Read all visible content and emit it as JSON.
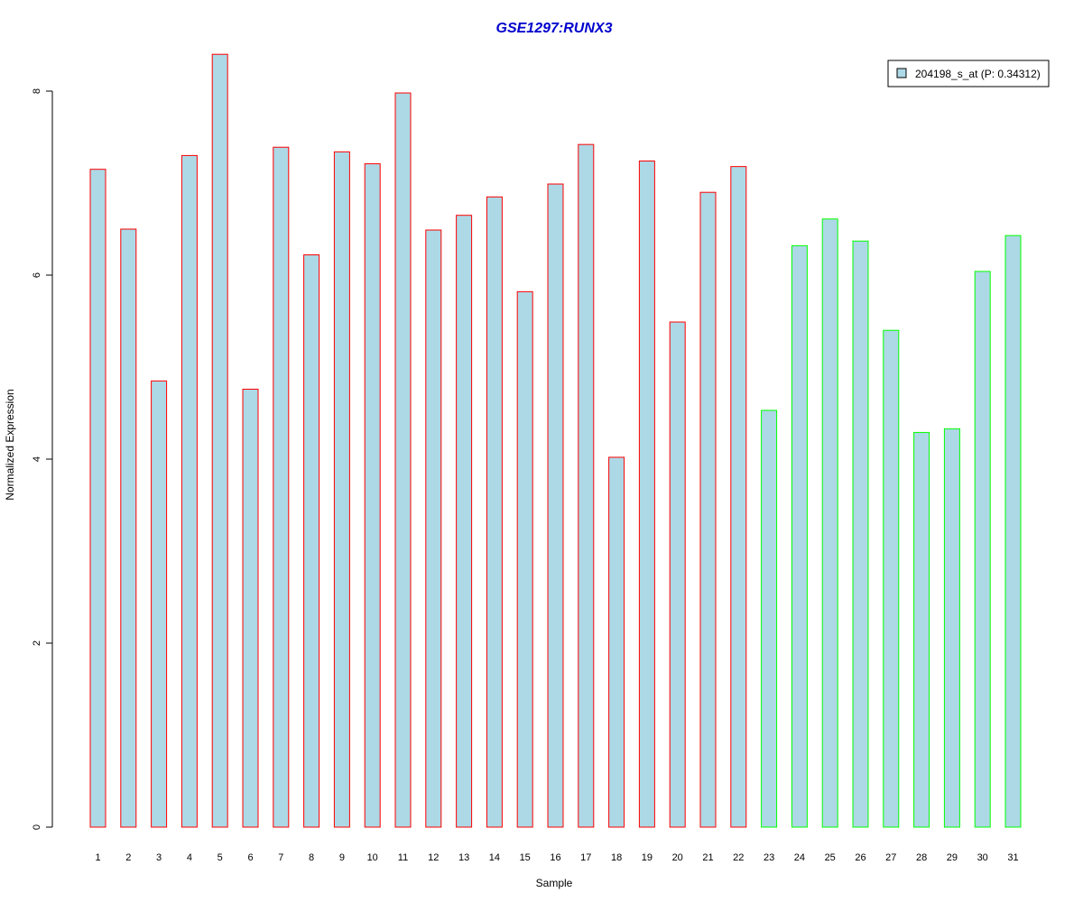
{
  "chart_data": {
    "type": "bar",
    "title": "GSE1297:RUNX3",
    "xlabel": "Sample",
    "ylabel": "Normalized Expression",
    "ylim": [
      0,
      8.4
    ],
    "yticks": [
      0,
      2,
      4,
      6,
      8
    ],
    "grid": false,
    "legend_position": "top-right",
    "categories": [
      "1",
      "2",
      "3",
      "4",
      "5",
      "6",
      "7",
      "8",
      "9",
      "10",
      "11",
      "12",
      "13",
      "14",
      "15",
      "16",
      "17",
      "18",
      "19",
      "20",
      "21",
      "22",
      "23",
      "24",
      "25",
      "26",
      "27",
      "28",
      "29",
      "30",
      "31"
    ],
    "series": [
      {
        "name": "204198_s_at (P: 0.34312)",
        "values": [
          7.15,
          6.5,
          4.85,
          7.3,
          8.4,
          4.76,
          7.39,
          6.22,
          7.34,
          7.21,
          7.98,
          6.49,
          6.65,
          6.85,
          5.82,
          6.99,
          7.42,
          4.02,
          7.24,
          5.49,
          6.9,
          7.18,
          4.53,
          6.32,
          6.61,
          6.37,
          5.4,
          4.29,
          4.33,
          6.04,
          6.43
        ]
      }
    ],
    "fill_color": "#add8e6",
    "group_border_colors": [
      "#ff0000",
      "#ff0000",
      "#ff0000",
      "#ff0000",
      "#ff0000",
      "#ff0000",
      "#ff0000",
      "#ff0000",
      "#ff0000",
      "#ff0000",
      "#ff0000",
      "#ff0000",
      "#ff0000",
      "#ff0000",
      "#ff0000",
      "#ff0000",
      "#ff0000",
      "#ff0000",
      "#ff0000",
      "#ff0000",
      "#ff0000",
      "#ff0000",
      "#00ff00",
      "#00ff00",
      "#00ff00",
      "#00ff00",
      "#00ff00",
      "#00ff00",
      "#00ff00",
      "#00ff00",
      "#00ff00"
    ]
  }
}
